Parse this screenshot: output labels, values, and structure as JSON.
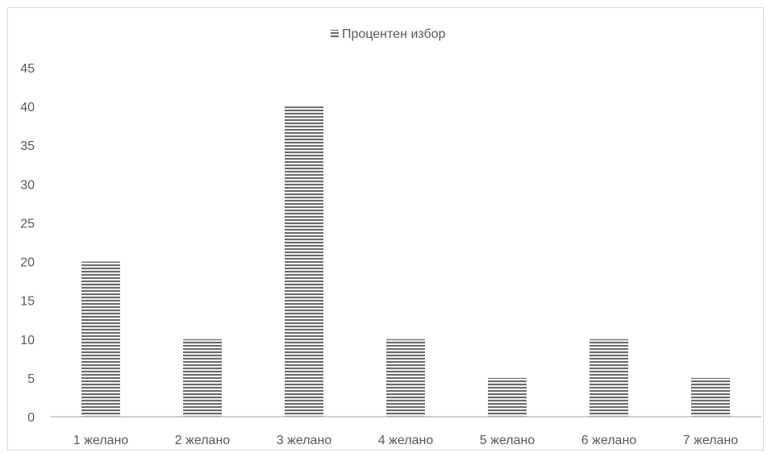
{
  "chart_data": {
    "type": "bar",
    "categories": [
      "1 желано",
      "2 желано",
      "3 желано",
      "4 желано",
      "5 желано",
      "6 желано",
      "7 желано"
    ],
    "series": [
      {
        "name": "Процентен избор",
        "values": [
          20,
          10,
          40,
          10,
          5,
          10,
          5
        ]
      }
    ],
    "ylim": [
      0,
      45
    ],
    "yticks": [
      0,
      5,
      10,
      15,
      20,
      25,
      30,
      35,
      40,
      45
    ],
    "grid": false,
    "legend": "top-center",
    "colors": {
      "bar_dark": "#6b6b6b",
      "bar_light": "#f2f2f2",
      "axis": "#bfbfbf",
      "frame": "#d9d9d9",
      "text": "#595959"
    }
  }
}
